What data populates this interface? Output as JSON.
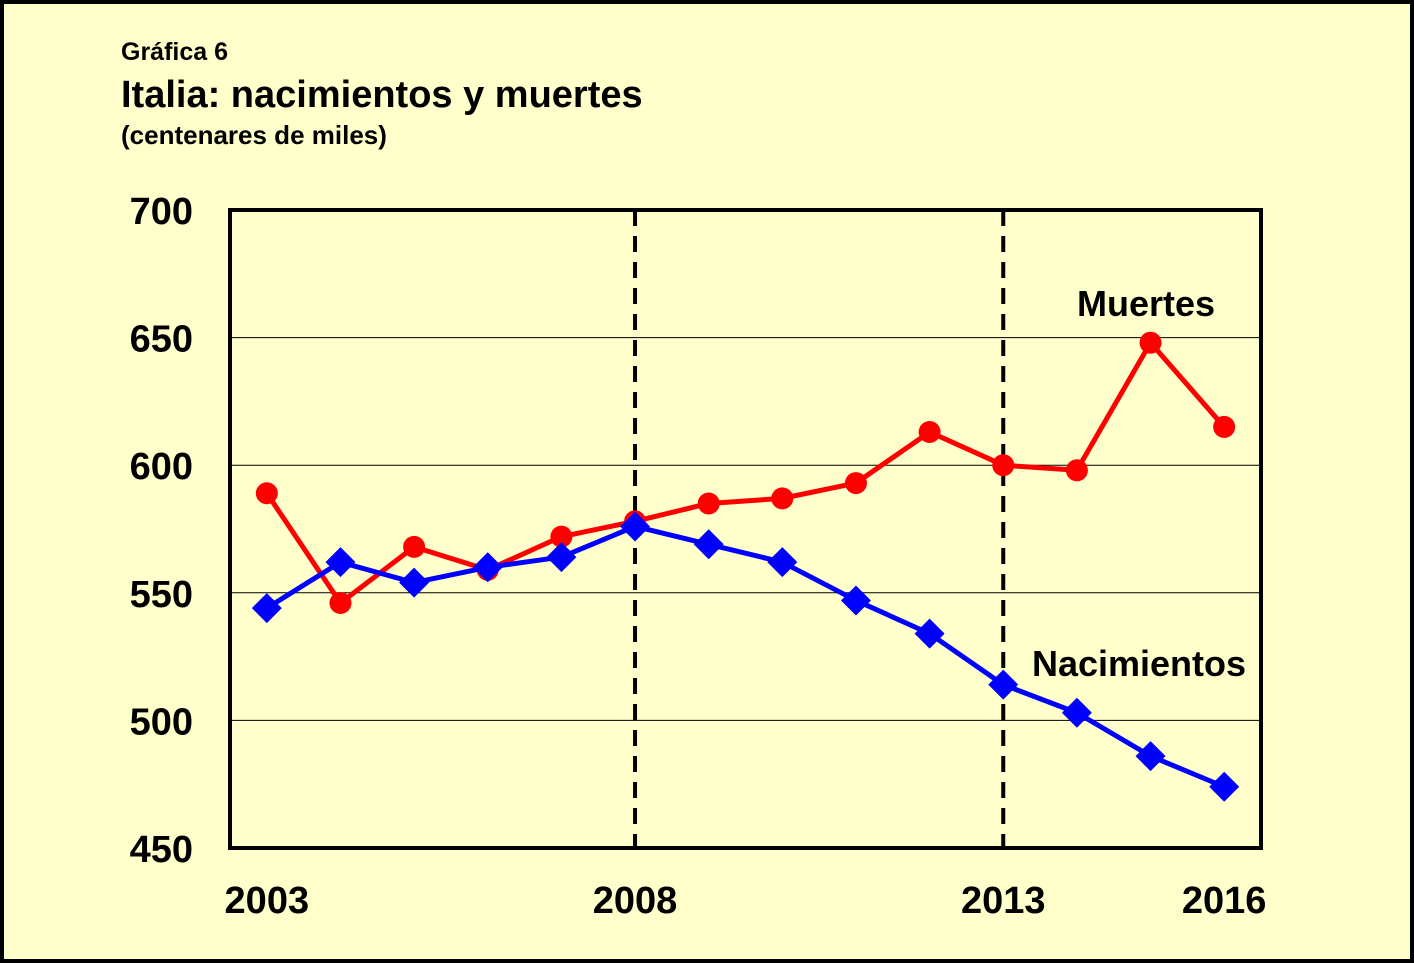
{
  "caption": {
    "label": "Gráfica 6",
    "title": "Italia: nacimientos y muertes",
    "subtitle": "(centenares de miles)"
  },
  "colors": {
    "background": "#ffffcc",
    "nacimientos": "#0000ff",
    "muertes": "#ff0000",
    "grid": "#000000"
  },
  "chart_data": {
    "type": "line",
    "x": [
      2003,
      2004,
      2005,
      2006,
      2007,
      2008,
      2009,
      2010,
      2011,
      2012,
      2013,
      2014,
      2015,
      2016
    ],
    "x_tick_labels": [
      "2003",
      "2008",
      "2013",
      "2016"
    ],
    "x_ticks": [
      2003,
      2008,
      2013,
      2016
    ],
    "xlim": [
      2002.5,
      2016.5
    ],
    "ylim": [
      450,
      700
    ],
    "y_ticks": [
      450,
      500,
      550,
      600,
      650,
      700
    ],
    "y_tick_labels": [
      "450",
      "500",
      "550",
      "600",
      "650",
      "700"
    ],
    "grid": "horizontal",
    "reference_lines": [
      2008,
      2013
    ],
    "series": [
      {
        "name": "Muertes",
        "marker": "circle",
        "values": [
          589,
          546,
          568,
          559,
          572,
          578,
          585,
          587,
          593,
          613,
          600,
          598,
          648,
          615
        ]
      },
      {
        "name": "Nacimientos",
        "marker": "diamond",
        "values": [
          544,
          562,
          554,
          560,
          564,
          576,
          569,
          562,
          547,
          534,
          514,
          503,
          486,
          474
        ]
      }
    ]
  }
}
